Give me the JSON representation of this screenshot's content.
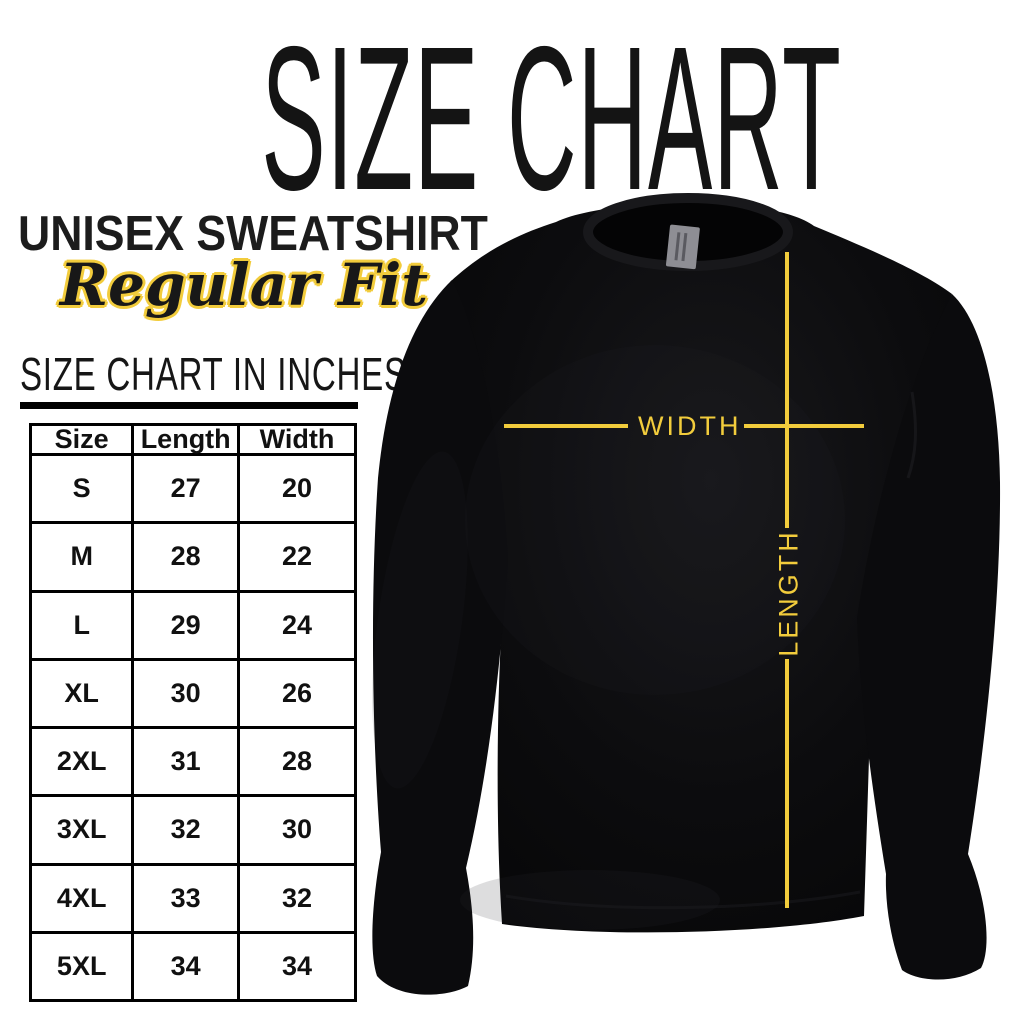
{
  "page": {
    "title": "SIZE CHART"
  },
  "product": {
    "name": "UNISEX SWEATSHIRT",
    "fit": "Regular Fit"
  },
  "section": {
    "heading": "SIZE CHART IN INCHES"
  },
  "chart_data": {
    "type": "table",
    "title": "SIZE CHART IN INCHES",
    "units": "inches",
    "columns": [
      "Size",
      "Length",
      "Width"
    ],
    "rows": [
      [
        "S",
        27,
        20
      ],
      [
        "M",
        28,
        22
      ],
      [
        "L",
        29,
        24
      ],
      [
        "XL",
        30,
        26
      ],
      [
        "2XL",
        31,
        28
      ],
      [
        "3XL",
        32,
        30
      ],
      [
        "4XL",
        33,
        32
      ],
      [
        "5XL",
        34,
        34
      ]
    ]
  },
  "diagram": {
    "width_label": "WIDTH",
    "length_label": "LENGTH"
  },
  "colors": {
    "accent_yellow": "#F2CC3C",
    "garment_black": "#0A0A0C",
    "tag_gray": "#8E8E94",
    "text_black": "#111111",
    "background": "#FFFFFF"
  }
}
